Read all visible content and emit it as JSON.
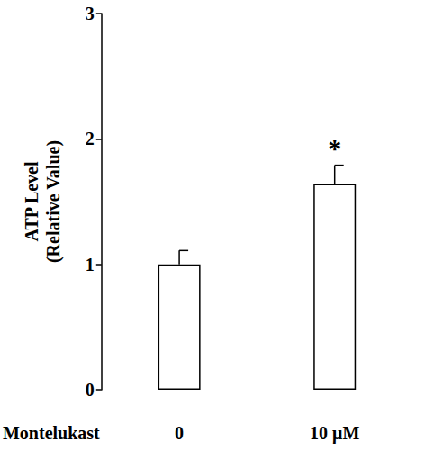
{
  "chart_data": {
    "type": "bar",
    "x_label": "Montelukast",
    "y_label": "ATP Level\n(Relative Value)",
    "categories": [
      "0",
      "10 μM"
    ],
    "values": [
      1.0,
      1.64
    ],
    "errors": [
      0.11,
      0.15
    ],
    "color": "#ffffff",
    "ylim": [
      0,
      3
    ],
    "yticks": [
      0,
      1,
      2,
      3
    ],
    "grid": false,
    "annotations": [
      {
        "category": "10 μM",
        "text": "*"
      }
    ]
  }
}
